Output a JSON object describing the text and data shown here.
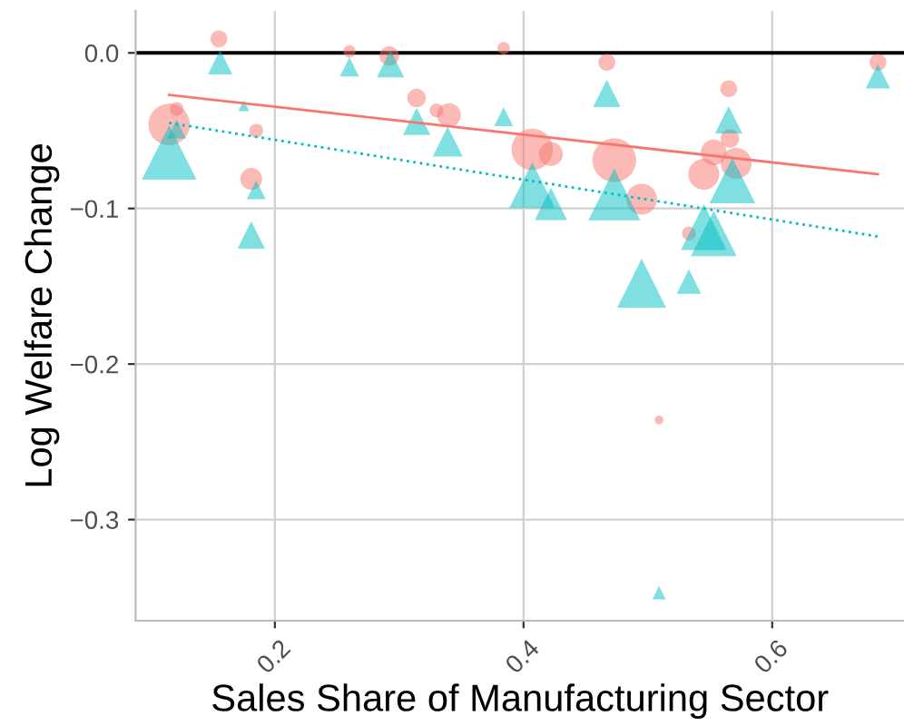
{
  "chart_data": {
    "type": "bubble",
    "xlabel": "Sales Share of Manufacturing Sector",
    "ylabel": "Log Welfare Change",
    "xlim": [
      0.088,
      0.706
    ],
    "ylim": [
      -0.365,
      0.027
    ],
    "xticks": [
      0.2,
      0.4,
      0.6
    ],
    "yticks": [
      {
        "value": 0.0,
        "label": "0.0"
      },
      {
        "value": -0.1,
        "label": "−0.1"
      },
      {
        "value": -0.2,
        "label": "−0.2"
      },
      {
        "value": -0.3,
        "label": "−0.3"
      }
    ],
    "grid": true,
    "ref_lines": [
      {
        "axis": "y",
        "value": 0,
        "color": "#000000"
      }
    ],
    "series": [
      {
        "marker": "circle",
        "color": "#f8766d",
        "x": [
          0.155,
          0.26,
          0.292,
          0.384,
          0.121,
          0.115,
          0.185,
          0.181,
          0.314,
          0.33,
          0.34,
          0.467,
          0.565,
          0.407,
          0.422,
          0.473,
          0.495,
          0.566,
          0.553,
          0.545,
          0.571,
          0.533,
          0.685,
          0.509
        ],
        "values": [
          0.009,
          0.001,
          -0.002,
          0.003,
          -0.036,
          -0.046,
          -0.05,
          -0.081,
          -0.029,
          -0.037,
          -0.04,
          -0.006,
          -0.023,
          -0.062,
          -0.065,
          -0.069,
          -0.094,
          -0.055,
          -0.064,
          -0.078,
          -0.071,
          -0.116,
          -0.006,
          -0.236
        ],
        "sizes": [
          0.15,
          0.08,
          0.2,
          0.08,
          0.1,
          0.9,
          0.1,
          0.25,
          0.18,
          0.1,
          0.3,
          0.15,
          0.15,
          0.9,
          0.3,
          1.0,
          0.5,
          0.18,
          0.35,
          0.5,
          0.5,
          0.1,
          0.15,
          0.04
        ]
      },
      {
        "marker": "triangle",
        "color": "#00bfc4",
        "x": [
          0.156,
          0.175,
          0.115,
          0.121,
          0.185,
          0.181,
          0.26,
          0.293,
          0.314,
          0.339,
          0.384,
          0.467,
          0.565,
          0.407,
          0.422,
          0.473,
          0.568,
          0.545,
          0.553,
          0.495,
          0.533,
          0.685,
          0.509
        ],
        "values": [
          -0.006,
          -0.034,
          -0.064,
          -0.049,
          -0.088,
          -0.117,
          -0.009,
          -0.007,
          -0.044,
          -0.057,
          -0.041,
          -0.026,
          -0.043,
          -0.085,
          -0.097,
          -0.091,
          -0.082,
          -0.112,
          -0.116,
          -0.148,
          -0.147,
          -0.015,
          -0.347
        ],
        "sizes": [
          0.2,
          0.04,
          1.0,
          0.12,
          0.12,
          0.25,
          0.12,
          0.25,
          0.25,
          0.3,
          0.12,
          0.25,
          0.25,
          0.7,
          0.35,
          0.9,
          0.7,
          0.7,
          0.7,
          0.8,
          0.2,
          0.2,
          0.06
        ]
      },
      {
        "type": "line",
        "line_style": "solid",
        "color": "#f8766d",
        "x": [
          0.115,
          0.685
        ],
        "values": [
          -0.027,
          -0.078
        ]
      },
      {
        "type": "line",
        "line_style": "dotted",
        "color": "#00bfc4",
        "x": [
          0.115,
          0.685
        ],
        "values": [
          -0.045,
          -0.118
        ]
      }
    ]
  }
}
